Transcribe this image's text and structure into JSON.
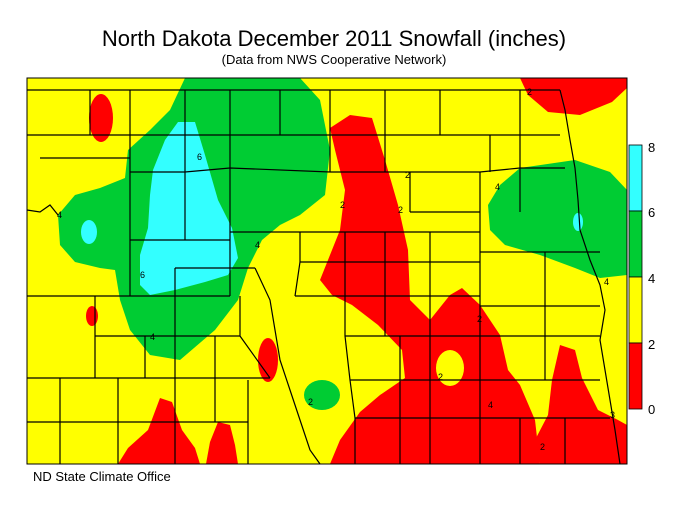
{
  "title": "North Dakota December 2011 Snowfall (inches)",
  "subtitle": "(Data from NWS Cooperative Network)",
  "footer": "ND State Climate Office",
  "legend": {
    "ticks": [
      "0",
      "2",
      "4",
      "6",
      "8"
    ],
    "bands": [
      {
        "range": "0-2",
        "color": "#ff0000"
      },
      {
        "range": "2-4",
        "color": "#ffff00"
      },
      {
        "range": "4-6",
        "color": "#00cc33"
      },
      {
        "range": "6-8",
        "color": "#33ffff"
      }
    ]
  },
  "contour_labels": [
    "2",
    "2",
    "2",
    "2",
    "2",
    "4",
    "4",
    "4",
    "4",
    "4",
    "6",
    "6",
    "2",
    "2",
    "4",
    "2",
    "3"
  ]
}
